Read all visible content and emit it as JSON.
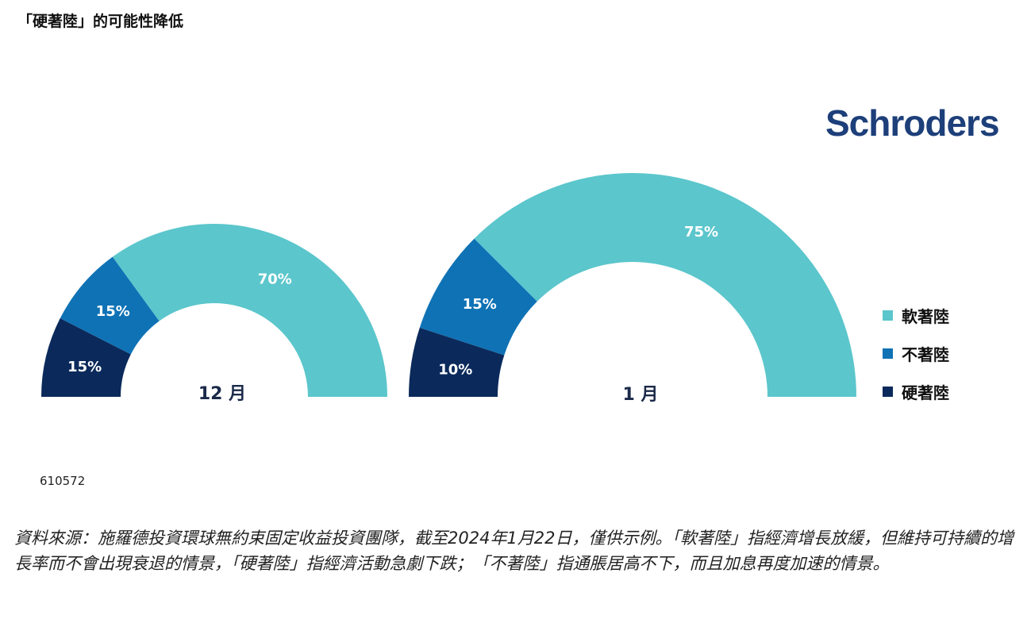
{
  "title": "「硬著陸」的可能性降低",
  "brand": "Schroders",
  "chart_id": "610572",
  "footnote": "資料來源：施羅德投資環球無約束固定收益投資團隊，截至2024年1月22日，僅供示例。「軟著陸」指經濟增長放緩，但維持可持續的增長率而不會出現衰退的情景，「硬著陸」指經濟活動急劇下跌；「不著陸」指通脹居高不下，而且加息再度加速的情景。",
  "colors": {
    "soft": "#5bc6cc",
    "no": "#0f72b5",
    "hard": "#0b2a5b"
  },
  "chart_data": [
    {
      "type": "pie",
      "variant": "half-donut",
      "label": "12 月",
      "categories": [
        "硬著陸",
        "不著陸",
        "軟著陸"
      ],
      "values": [
        15,
        15,
        70
      ],
      "data_labels": [
        "15%",
        "15%",
        "70%"
      ]
    },
    {
      "type": "pie",
      "variant": "half-donut",
      "label": "1 月",
      "categories": [
        "硬著陸",
        "不著陸",
        "軟著陸"
      ],
      "values": [
        10,
        15,
        75
      ],
      "data_labels": [
        "10%",
        "15%",
        "75%"
      ]
    }
  ],
  "legend": [
    {
      "label": "軟著陸",
      "color": "#5bc6cc"
    },
    {
      "label": "不著陸",
      "color": "#0f72b5"
    },
    {
      "label": "硬著陸",
      "color": "#0b2a5b"
    }
  ]
}
